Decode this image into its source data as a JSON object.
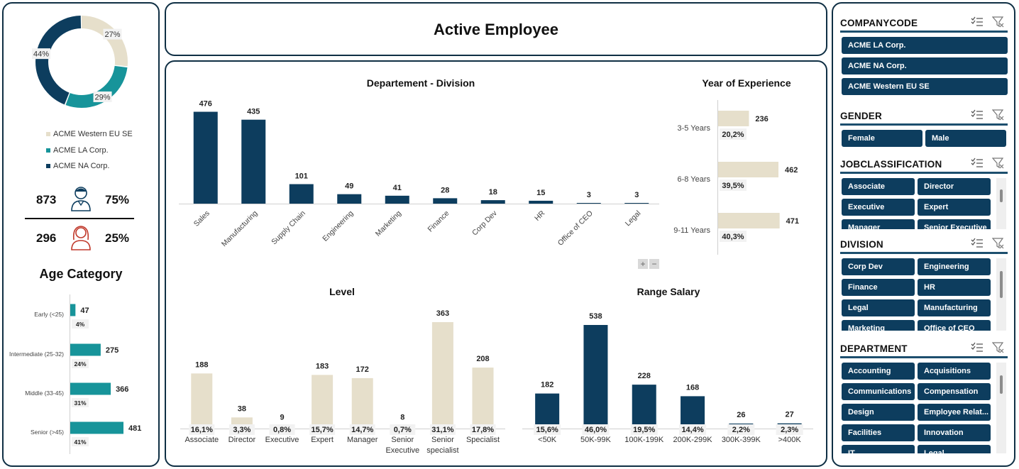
{
  "header": {
    "title": "Active Employee"
  },
  "company_donut": {
    "slices": [
      {
        "name": "ACME Western EU SE",
        "pct": 27,
        "label": "27%",
        "color": "#e6dfcb"
      },
      {
        "name": "ACME LA Corp.",
        "pct": 29,
        "label": "29%",
        "color": "#17949a"
      },
      {
        "name": "ACME NA Corp.",
        "pct": 44,
        "label": "44%",
        "color": "#0d3d5e"
      }
    ],
    "legend": [
      "ACME Western EU SE",
      "ACME LA Corp.",
      "ACME NA Corp."
    ]
  },
  "gender_stats": {
    "male": {
      "count": "873",
      "pct": "75%"
    },
    "female": {
      "count": "296",
      "pct": "25%"
    }
  },
  "age_category": {
    "title": "Age Category",
    "categories": [
      "Early (<25)",
      "Intermediate (25-32)",
      "Middle (33-45)",
      "Senior (>45)"
    ],
    "values": [
      47,
      275,
      366,
      481
    ],
    "percents": [
      "4%",
      "24%",
      "31%",
      "41%"
    ]
  },
  "department_division": {
    "title": "Departement - Division",
    "categories": [
      "Sales",
      "Manufacturing",
      "Supply Chain",
      "Engineering",
      "Marketing",
      "Finance",
      "Corp Dev",
      "HR",
      "Office of CEO",
      "Legal"
    ],
    "values": [
      476,
      435,
      101,
      49,
      41,
      28,
      18,
      15,
      3,
      3
    ]
  },
  "year_experience": {
    "title": "Year of Experience",
    "categories": [
      "3-5 Years",
      "6-8 Years",
      "9-11 Years"
    ],
    "values": [
      236,
      462,
      471
    ],
    "percents": [
      "20,2%",
      "39,5%",
      "40,3%"
    ]
  },
  "level": {
    "title": "Level",
    "categories": [
      "Associate",
      "Director",
      "Executive",
      "Expert",
      "Manager",
      "Senior Executive",
      "Senior specialist",
      "Specialist"
    ],
    "values": [
      188,
      38,
      9,
      183,
      172,
      8,
      363,
      208
    ],
    "percents": [
      "16,1%",
      "3,3%",
      "0,8%",
      "15,7%",
      "14,7%",
      "0,7%",
      "31,1%",
      "17,8%"
    ]
  },
  "range_salary": {
    "title": "Range Salary",
    "categories": [
      "<50K",
      "50K-99K",
      "100K-199K",
      "200K-299K",
      "300K-399K",
      ">400K"
    ],
    "values": [
      182,
      538,
      228,
      168,
      26,
      27
    ],
    "percents": [
      "15,6%",
      "46,0%",
      "19,5%",
      "14,4%",
      "2,2%",
      "2,3%"
    ]
  },
  "zoom": {
    "plus": "+",
    "minus": "−"
  },
  "slicers": {
    "companycode": {
      "title": "COMPANYCODE",
      "items": [
        "ACME LA Corp.",
        "ACME NA Corp.",
        "ACME Western EU SE"
      ]
    },
    "gender": {
      "title": "GENDER",
      "items": [
        "Female",
        "Male"
      ]
    },
    "jobclassification": {
      "title": "JOBCLASSIFICATION",
      "items": [
        "Associate",
        "Director",
        "Executive",
        "Expert",
        "Manager",
        "Senior Executive"
      ]
    },
    "division": {
      "title": "DIVISION",
      "items": [
        "Corp Dev",
        "Engineering",
        "Finance",
        "HR",
        "Legal",
        "Manufacturing",
        "Marketing",
        "Office of CEO"
      ]
    },
    "department": {
      "title": "DEPARTMENT",
      "items": [
        "Accounting",
        "Acquisitions",
        "Communications",
        "Compensation",
        "Design",
        "Employee Relat...",
        "Facilities",
        "Innovation",
        "IT",
        "Legal"
      ]
    }
  },
  "colors": {
    "navy": "#0d3d5e",
    "teal": "#17949a",
    "beige": "#e6dfcb"
  }
}
